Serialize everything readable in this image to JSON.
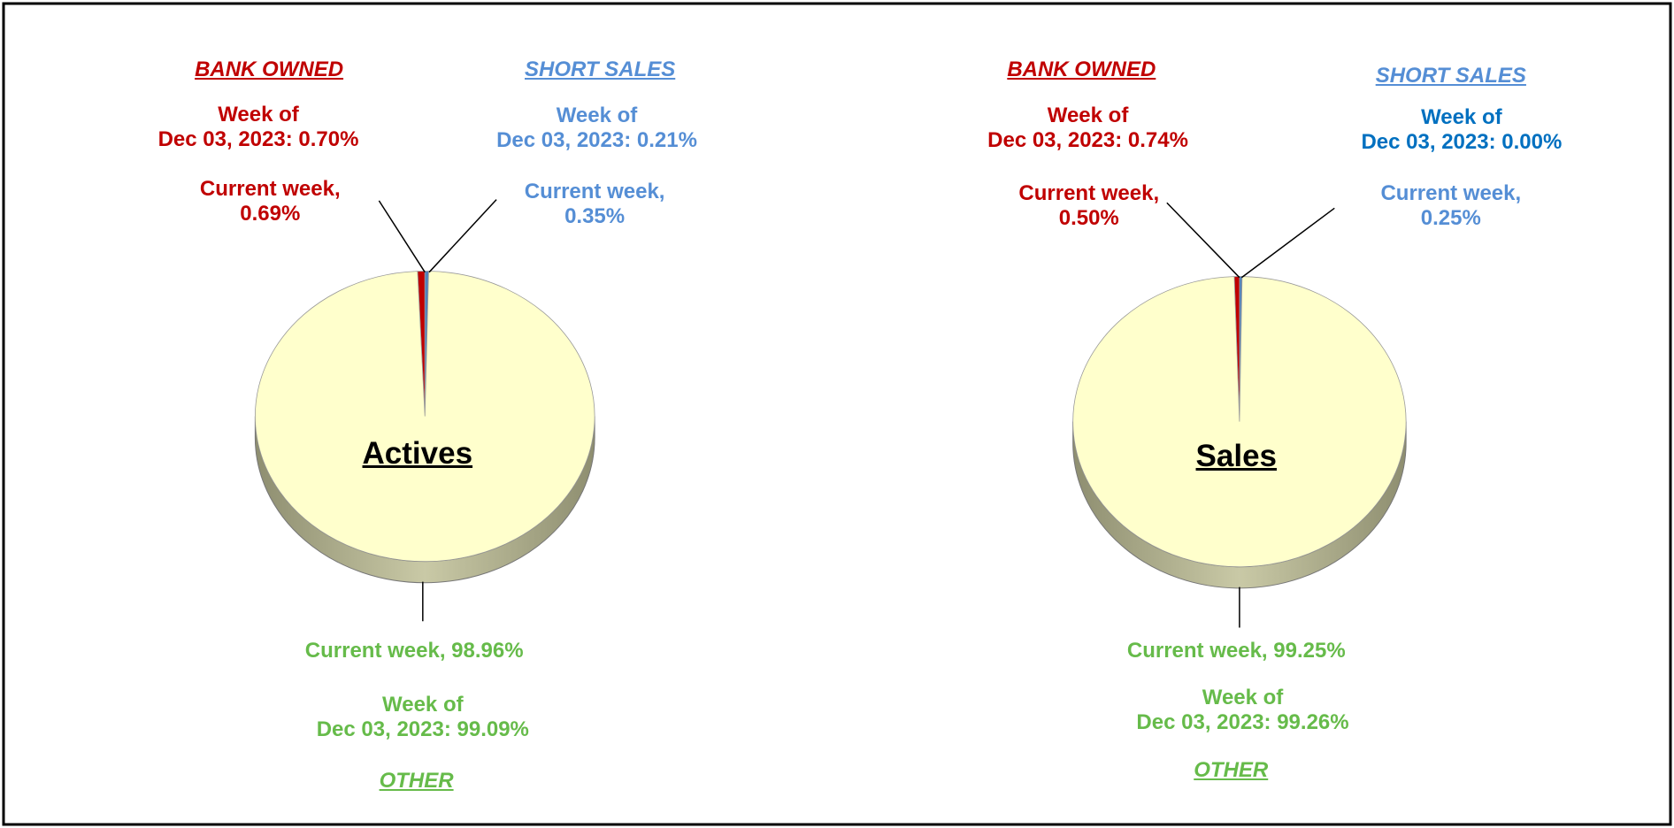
{
  "chart_data": [
    {
      "type": "pie",
      "title": "Actives",
      "categories": [
        "BANK OWNED",
        "SHORT SALES",
        "OTHER"
      ],
      "values": [
        0.69,
        0.35,
        98.96
      ],
      "value_labels": [
        "Current week,\n0.69%",
        "Current week,\n0.35%",
        "Current week, 98.96%"
      ],
      "prior_labels": [
        "Week of\nDec 03, 2023: 0.70%",
        "Week of\nDec 03, 2023: 0.21%",
        "Week of\nDec 03, 2023: 99.09%"
      ],
      "colors": [
        "#c00000",
        "#4f81bd",
        "#ffffcc"
      ],
      "label_colors": [
        "#c00000",
        "#558ed5",
        "#66bb4a"
      ],
      "prior_label_colors": [
        "#c00000",
        "#558ed5",
        "#66bb4a"
      ]
    },
    {
      "type": "pie",
      "title": "Sales",
      "categories": [
        "BANK OWNED",
        "SHORT SALES",
        "OTHER"
      ],
      "values": [
        0.5,
        0.25,
        99.25
      ],
      "value_labels": [
        "Current week,\n0.50%",
        "Current week,\n0.25%",
        "Current week, 99.25%"
      ],
      "prior_labels": [
        "Week of\nDec 03, 2023: 0.74%",
        "Week of\nDec 03, 2023: 0.00%",
        "Week of\nDec 03, 2023: 99.26%"
      ],
      "colors": [
        "#c00000",
        "#4f81bd",
        "#ffffcc"
      ],
      "label_colors": [
        "#c00000",
        "#558ed5",
        "#66bb4a"
      ],
      "prior_label_colors": [
        "#c00000",
        "#0070c0",
        "#66bb4a"
      ]
    }
  ]
}
